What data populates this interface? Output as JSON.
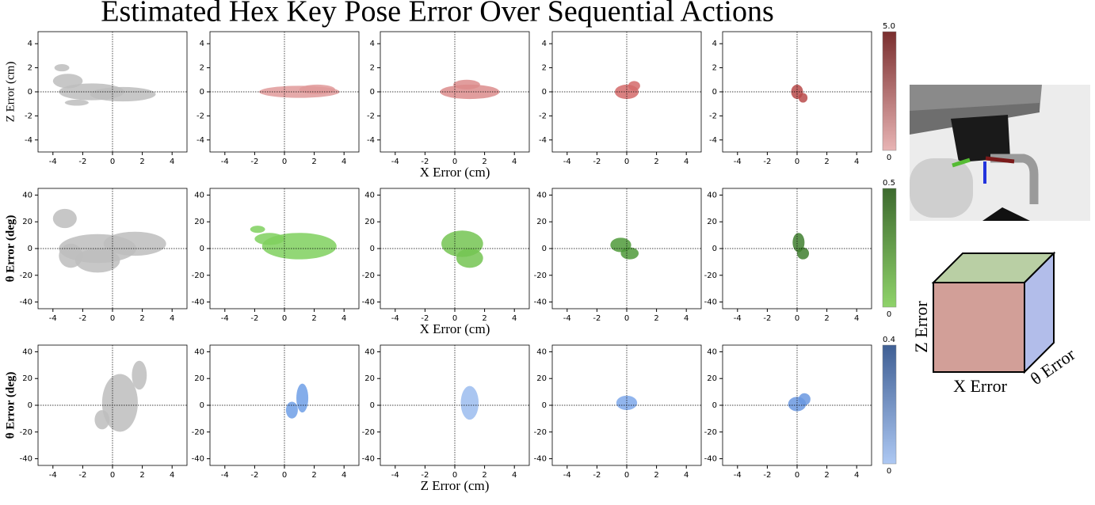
{
  "title": "Estimated Hex Key Pose Error Over Sequential Actions",
  "chart_data": [
    {
      "type": "density",
      "ylabel": "Z Error  (cm)",
      "color": "#bdbdbd",
      "xlim": [
        -5,
        5
      ],
      "xticks": [
        -4,
        -2,
        0,
        2,
        4
      ],
      "ylim": [
        -5,
        5
      ],
      "yticks": [
        -4,
        -2,
        0,
        2,
        4
      ]
    },
    {
      "type": "density",
      "color": "#e09a9a",
      "xlim": [
        -5,
        5
      ],
      "xticks": [
        -4,
        -2,
        0,
        2,
        4
      ],
      "ylim": [
        -5,
        5
      ],
      "yticks": [
        -4,
        -2,
        0,
        2,
        4
      ]
    },
    {
      "type": "density",
      "xlabel": "X Error (cm)",
      "color": "#dc8c8c",
      "xlim": [
        -5,
        5
      ],
      "xticks": [
        -4,
        -2,
        0,
        2,
        4
      ],
      "ylim": [
        -5,
        5
      ],
      "yticks": [
        -4,
        -2,
        0,
        2,
        4
      ]
    },
    {
      "type": "density",
      "color": "#d36a6a",
      "xlim": [
        -5,
        5
      ],
      "xticks": [
        -4,
        -2,
        0,
        2,
        4
      ],
      "ylim": [
        -5,
        5
      ],
      "yticks": [
        -4,
        -2,
        0,
        2,
        4
      ]
    },
    {
      "type": "density",
      "color": "#b84a4a",
      "xlim": [
        -5,
        5
      ],
      "xticks": [
        -4,
        -2,
        0,
        2,
        4
      ],
      "ylim": [
        -5,
        5
      ],
      "yticks": [
        -4,
        -2,
        0,
        2,
        4
      ]
    },
    {
      "type": "density",
      "ylabel": "θ Error  (deg)",
      "color": "#bdbdbd",
      "xlim": [
        -5,
        5
      ],
      "xticks": [
        -4,
        -2,
        0,
        2,
        4
      ],
      "ylim": [
        -45,
        45
      ],
      "yticks": [
        -40,
        -20,
        0,
        20,
        40
      ]
    },
    {
      "type": "density",
      "color": "#7fd05e",
      "xlim": [
        -5,
        5
      ],
      "xticks": [
        -4,
        -2,
        0,
        2,
        4
      ],
      "ylim": [
        -45,
        45
      ],
      "yticks": [
        -40,
        -20,
        0,
        20,
        40
      ]
    },
    {
      "type": "density",
      "xlabel": "X Error (cm)",
      "color": "#74c452",
      "xlim": [
        -5,
        5
      ],
      "xticks": [
        -4,
        -2,
        0,
        2,
        4
      ],
      "ylim": [
        -45,
        45
      ],
      "yticks": [
        -40,
        -20,
        0,
        20,
        40
      ]
    },
    {
      "type": "density",
      "color": "#4f9a3a",
      "xlim": [
        -5,
        5
      ],
      "xticks": [
        -4,
        -2,
        0,
        2,
        4
      ],
      "ylim": [
        -45,
        45
      ],
      "yticks": [
        -40,
        -20,
        0,
        20,
        40
      ]
    },
    {
      "type": "density",
      "color": "#3f7f2f",
      "xlim": [
        -5,
        5
      ],
      "xticks": [
        -4,
        -2,
        0,
        2,
        4
      ],
      "ylim": [
        -45,
        45
      ],
      "yticks": [
        -40,
        -20,
        0,
        20,
        40
      ]
    },
    {
      "type": "density",
      "ylabel": "θ Error  (deg)",
      "color": "#bdbdbd",
      "xlim": [
        -5,
        5
      ],
      "xticks": [
        -4,
        -2,
        0,
        2,
        4
      ],
      "ylim": [
        -45,
        45
      ],
      "yticks": [
        -40,
        -20,
        0,
        20,
        40
      ]
    },
    {
      "type": "density",
      "color": "#6f9fe6",
      "xlim": [
        -5,
        5
      ],
      "xticks": [
        -4,
        -2,
        0,
        2,
        4
      ],
      "ylim": [
        -45,
        45
      ],
      "yticks": [
        -40,
        -20,
        0,
        20,
        40
      ]
    },
    {
      "type": "density",
      "xlabel": "Z Error (cm)",
      "color": "#9bbcef",
      "xlim": [
        -5,
        5
      ],
      "xticks": [
        -4,
        -2,
        0,
        2,
        4
      ],
      "ylim": [
        -45,
        45
      ],
      "yticks": [
        -40,
        -20,
        0,
        20,
        40
      ]
    },
    {
      "type": "density",
      "color": "#7ea8ea",
      "xlim": [
        -5,
        5
      ],
      "xticks": [
        -4,
        -2,
        0,
        2,
        4
      ],
      "ylim": [
        -45,
        45
      ],
      "yticks": [
        -40,
        -20,
        0,
        20,
        40
      ]
    },
    {
      "type": "density",
      "color": "#6a98e0",
      "xlim": [
        -5,
        5
      ],
      "xticks": [
        -4,
        -2,
        0,
        2,
        4
      ],
      "ylim": [
        -45,
        45
      ],
      "yticks": [
        -40,
        -20,
        0,
        20,
        40
      ]
    }
  ],
  "colorbars": [
    {
      "light": "#e8b4b4",
      "dark": "#7a2e2e",
      "ticks": [
        0,
        {
          "value": 5,
          "label": "5.0"
        }
      ]
    },
    {
      "light": "#8fd36a",
      "dark": "#3d6a2e",
      "ticks": [
        0,
        0.5
      ]
    },
    {
      "light": "#adc8f3",
      "dark": "#3f5f94",
      "ticks": [
        0,
        0.4
      ]
    }
  ],
  "diagram": {
    "z_label": "Z Error",
    "x_label": "X Error",
    "theta_label": "θ Error"
  }
}
